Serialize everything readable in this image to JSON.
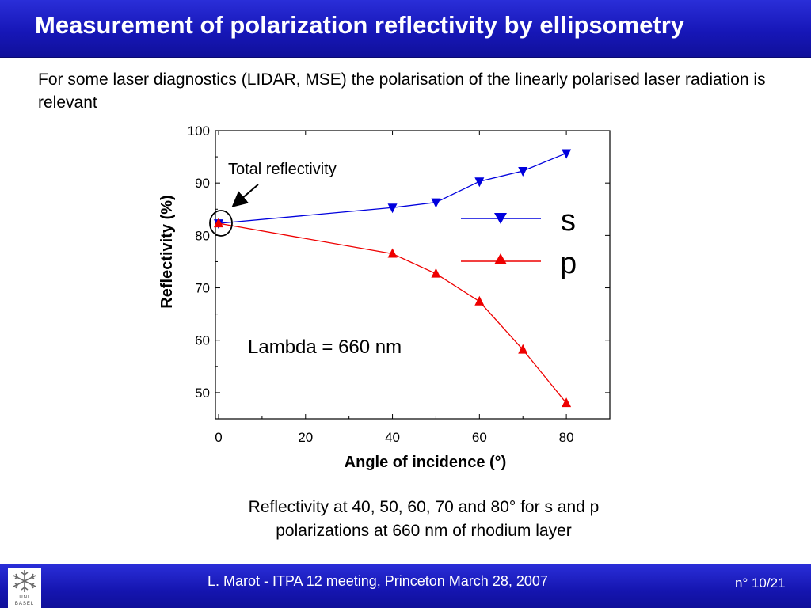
{
  "slide": {
    "title": "Measurement of polarization reflectivity by ellipsometry",
    "intro": "For some laser diagnostics (LIDAR, MSE) the polarisation of the linearly polarised laser radiation is relevant",
    "caption_line1": "Reflectivity at 40, 50, 60, 70 and 80° for s and p",
    "caption_line2": "polarizations at 660 nm of rhodium layer"
  },
  "footer": {
    "text": "L. Marot - ITPA 12 meeting, Princeton March 28, 2007",
    "page": "n° 10/21",
    "logo_line1": "UNI",
    "logo_line2": "BASEL"
  },
  "colors": {
    "s_series": "#0000dd",
    "p_series": "#ee0000",
    "header_blue": "#1a1ac8"
  },
  "chart_data": {
    "type": "line",
    "xlabel": "Angle of incidence (°)",
    "ylabel": "Reflectivity (%)",
    "xlim": [
      0,
      90
    ],
    "ylim": [
      45,
      100
    ],
    "x_ticks": [
      0,
      20,
      40,
      60,
      80
    ],
    "y_ticks": [
      50,
      60,
      70,
      80,
      90,
      100
    ],
    "series": [
      {
        "name": "s",
        "marker": "triangle-down",
        "x": [
          0,
          40,
          50,
          60,
          70,
          80
        ],
        "values": [
          82.3,
          85.3,
          86.3,
          90.3,
          92.3,
          95.7
        ]
      },
      {
        "name": "p",
        "marker": "triangle-up",
        "x": [
          0,
          40,
          50,
          60,
          70,
          80
        ],
        "values": [
          82.3,
          76.5,
          72.7,
          67.4,
          58.2,
          48.0
        ]
      }
    ],
    "annotations": [
      "Total reflectivity",
      "Lambda = 660 nm"
    ],
    "legend_placement": "right"
  }
}
